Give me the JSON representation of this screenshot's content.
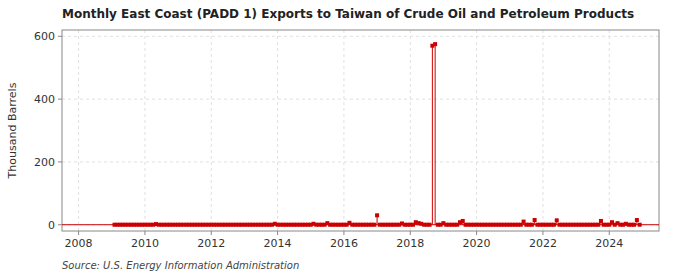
{
  "chart_data": {
    "type": "stem",
    "title": "Monthly East Coast (PADD 1) Exports to Taiwan of Crude Oil and Petroleum Products",
    "y_label": "Thousand Barrels",
    "annotations": [
      "Source: U.S. Energy Information Administration"
    ],
    "color": "#cc0000",
    "marker": "square",
    "grid": true,
    "xlim": [
      2007.5,
      2025.5
    ],
    "xticks": [
      2008,
      2010,
      2012,
      2014,
      2016,
      2018,
      2020,
      2022,
      2024
    ],
    "ylim": [
      -20,
      620
    ],
    "yticks": [
      0,
      200,
      400,
      600
    ],
    "x": [
      2009.083,
      2009.167,
      2009.25,
      2009.333,
      2009.417,
      2009.5,
      2009.583,
      2009.667,
      2009.75,
      2009.833,
      2009.917,
      2010.0,
      2010.083,
      2010.167,
      2010.25,
      2010.333,
      2010.417,
      2010.5,
      2010.583,
      2010.667,
      2010.75,
      2010.833,
      2010.917,
      2011.0,
      2011.083,
      2011.167,
      2011.25,
      2011.333,
      2011.417,
      2011.5,
      2011.583,
      2011.667,
      2011.75,
      2011.833,
      2011.917,
      2012.0,
      2012.083,
      2012.167,
      2012.25,
      2012.333,
      2012.417,
      2012.5,
      2012.583,
      2012.667,
      2012.75,
      2012.833,
      2012.917,
      2013.0,
      2013.083,
      2013.167,
      2013.25,
      2013.333,
      2013.417,
      2013.5,
      2013.583,
      2013.667,
      2013.75,
      2013.833,
      2013.917,
      2014.0,
      2014.083,
      2014.167,
      2014.25,
      2014.333,
      2014.417,
      2014.5,
      2014.583,
      2014.667,
      2014.75,
      2014.833,
      2014.917,
      2015.0,
      2015.083,
      2015.167,
      2015.25,
      2015.333,
      2015.417,
      2015.5,
      2015.583,
      2015.667,
      2015.75,
      2015.833,
      2015.917,
      2016.0,
      2016.083,
      2016.167,
      2016.25,
      2016.333,
      2016.417,
      2016.5,
      2016.583,
      2016.667,
      2016.75,
      2016.833,
      2016.917,
      2017.0,
      2017.083,
      2017.167,
      2017.25,
      2017.333,
      2017.417,
      2017.5,
      2017.583,
      2017.667,
      2017.75,
      2017.833,
      2017.917,
      2018.0,
      2018.083,
      2018.167,
      2018.25,
      2018.333,
      2018.417,
      2018.5,
      2018.583,
      2018.667,
      2018.75,
      2018.833,
      2018.917,
      2019.0,
      2019.083,
      2019.167,
      2019.25,
      2019.333,
      2019.417,
      2019.5,
      2019.583,
      2019.667,
      2019.75,
      2019.833,
      2019.917,
      2020.0,
      2020.083,
      2020.167,
      2020.25,
      2020.333,
      2020.417,
      2020.5,
      2020.583,
      2020.667,
      2020.75,
      2020.833,
      2020.917,
      2021.0,
      2021.083,
      2021.167,
      2021.25,
      2021.333,
      2021.417,
      2021.5,
      2021.583,
      2021.667,
      2021.75,
      2021.833,
      2021.917,
      2022.0,
      2022.083,
      2022.167,
      2022.25,
      2022.333,
      2022.417,
      2022.5,
      2022.583,
      2022.667,
      2022.75,
      2022.833,
      2022.917,
      2023.0,
      2023.083,
      2023.167,
      2023.25,
      2023.333,
      2023.417,
      2023.5,
      2023.583,
      2023.667,
      2023.75,
      2023.833,
      2023.917,
      2024.0,
      2024.083,
      2024.167,
      2024.25,
      2024.333,
      2024.417,
      2024.5,
      2024.583,
      2024.667,
      2024.75,
      2024.833,
      2024.917
    ],
    "values": [
      0,
      0,
      0,
      0,
      0,
      0,
      0,
      0,
      0,
      0,
      0,
      0,
      0,
      0,
      0,
      2,
      0,
      0,
      0,
      0,
      0,
      0,
      0,
      0,
      0,
      0,
      0,
      0,
      0,
      0,
      0,
      0,
      0,
      0,
      0,
      0,
      0,
      0,
      0,
      0,
      0,
      0,
      0,
      0,
      0,
      0,
      0,
      0,
      0,
      0,
      0,
      0,
      0,
      0,
      0,
      0,
      0,
      0,
      3,
      0,
      0,
      0,
      0,
      0,
      0,
      0,
      0,
      0,
      0,
      0,
      0,
      0,
      3,
      0,
      0,
      0,
      0,
      5,
      0,
      0,
      0,
      0,
      0,
      0,
      0,
      6,
      0,
      0,
      0,
      0,
      0,
      0,
      0,
      0,
      0,
      30,
      0,
      0,
      0,
      0,
      0,
      0,
      0,
      0,
      4,
      0,
      0,
      0,
      0,
      8,
      5,
      3,
      0,
      0,
      0,
      570,
      575,
      0,
      0,
      5,
      0,
      0,
      0,
      0,
      0,
      8,
      12,
      0,
      0,
      0,
      0,
      0,
      0,
      0,
      0,
      0,
      0,
      0,
      0,
      0,
      0,
      0,
      0,
      0,
      0,
      0,
      0,
      0,
      10,
      0,
      0,
      0,
      15,
      0,
      0,
      0,
      0,
      0,
      0,
      0,
      14,
      0,
      0,
      0,
      0,
      0,
      0,
      0,
      0,
      0,
      0,
      0,
      0,
      0,
      0,
      0,
      12,
      0,
      0,
      0,
      8,
      0,
      5,
      0,
      0,
      3,
      0,
      0,
      0,
      15,
      0
    ]
  }
}
